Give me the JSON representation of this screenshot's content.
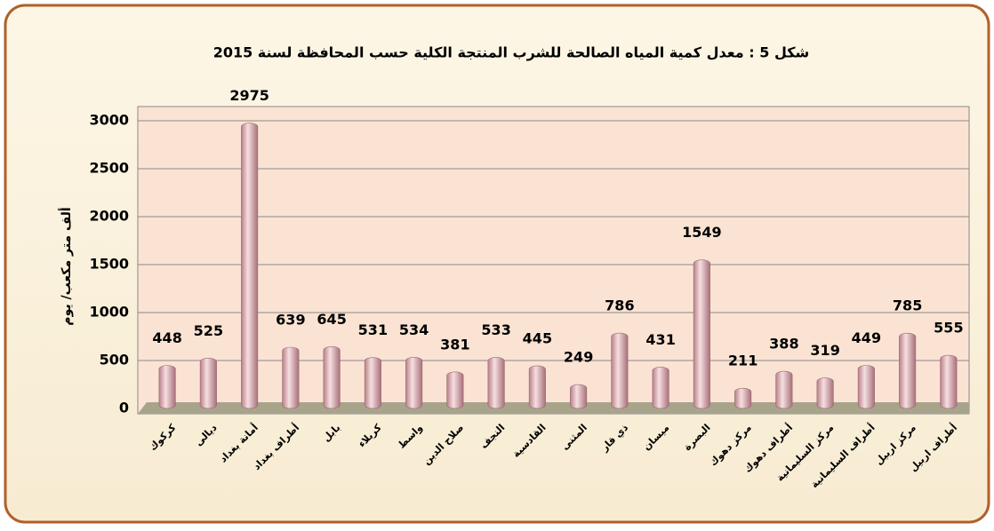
{
  "chart_data": {
    "type": "bar",
    "title": "شكل 5 : معدل كمية المياه الصالحة للشرب المنتجة الكلية حسب المحافظة لسنة 2015",
    "y_label": "ألف متر مكعب/ يوم",
    "categories": [
      "كركوك",
      "ديالى",
      "أمانة بغداد",
      "أطراف بغداد",
      "بابل",
      "كربلاء",
      "واسط",
      "صلاح الدين",
      "النجف",
      "القادسية",
      "المثنى",
      "ذي قار",
      "ميسان",
      "البصرة",
      "مركز دهوك",
      "أطراف دهوك",
      "مركز السليمانية",
      "أطراف السليمانية",
      "مركز اربيل",
      "أطراف اربيل"
    ],
    "values": [
      448,
      525,
      2975,
      639,
      645,
      531,
      534,
      381,
      533,
      445,
      249,
      786,
      431,
      1549,
      211,
      388,
      319,
      449,
      785,
      555
    ],
    "color": "#e8b8bc",
    "ylim": [
      0,
      3000
    ],
    "yticks": [
      0,
      500,
      1000,
      1500,
      2000,
      2500,
      3000
    ],
    "grid": true
  }
}
